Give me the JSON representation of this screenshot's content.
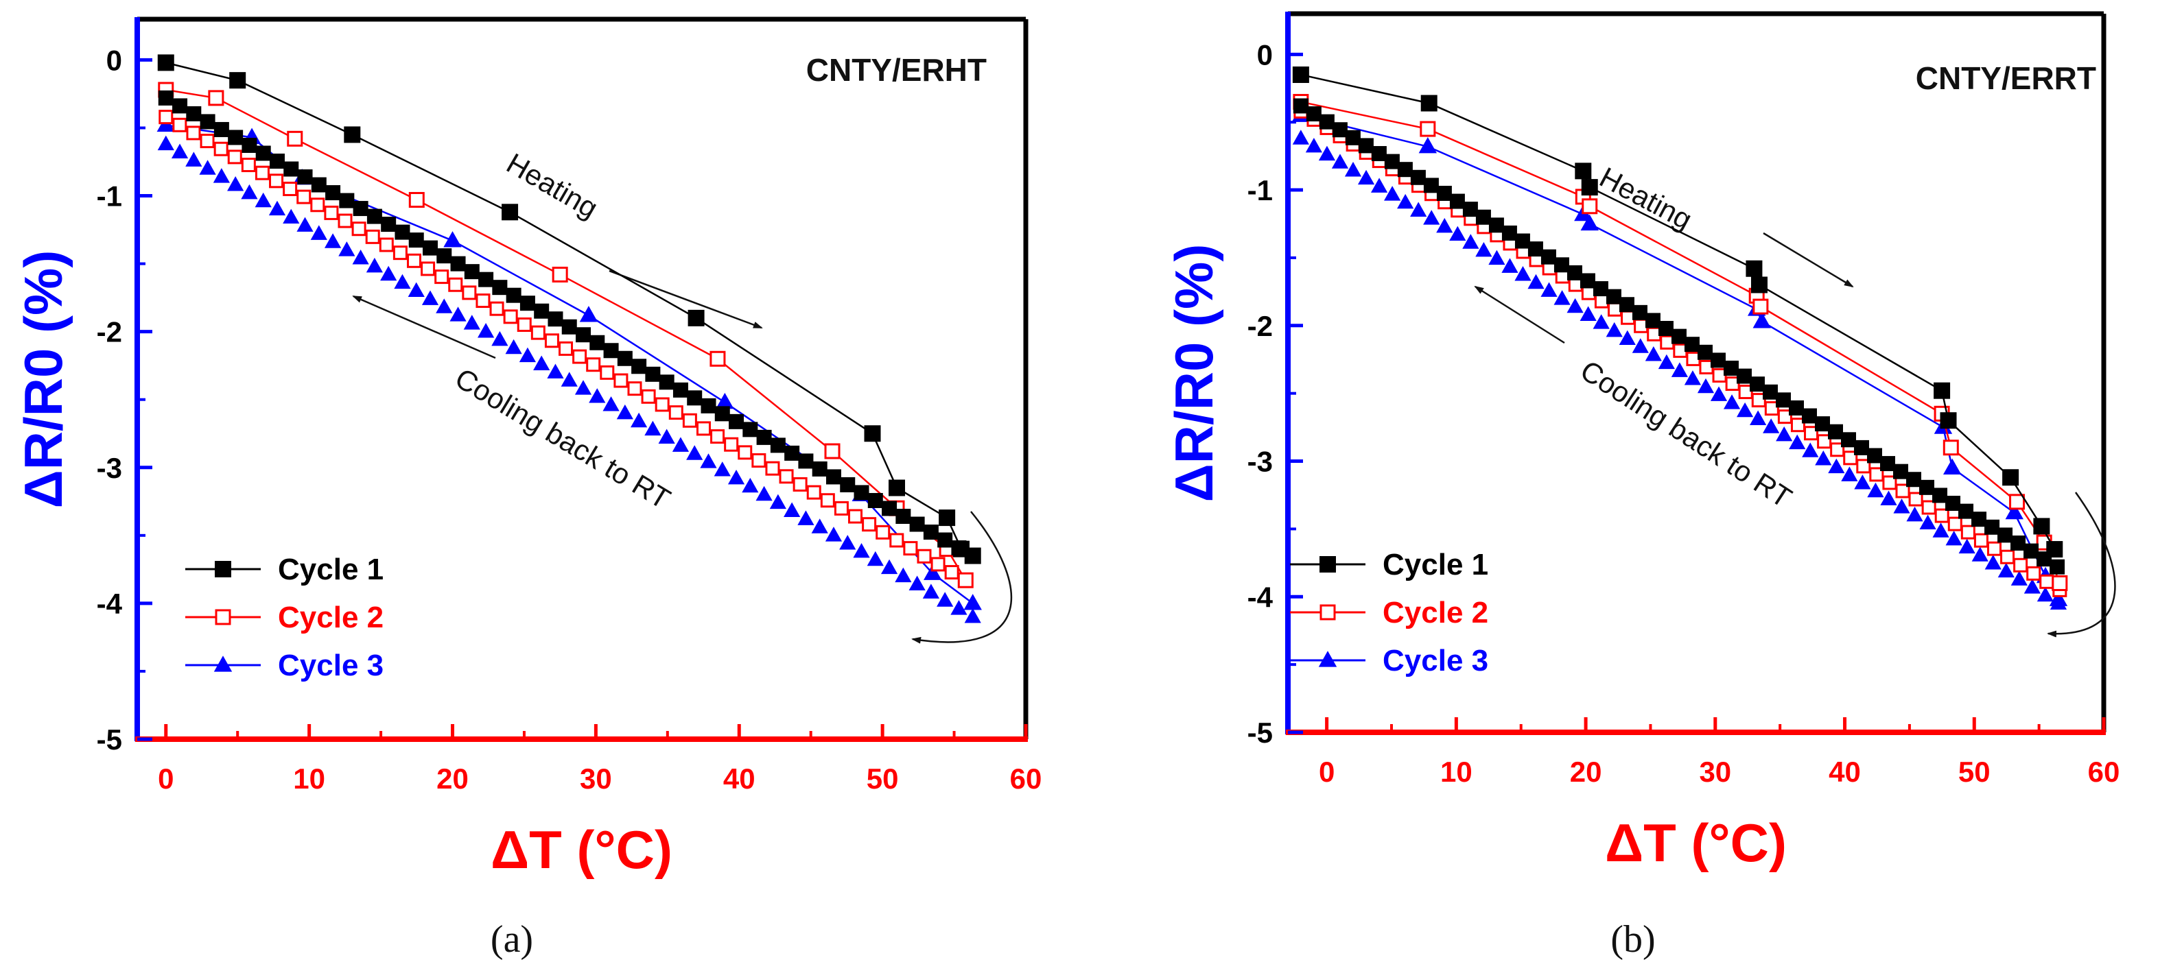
{
  "chart_data": [
    {
      "type": "line",
      "title": "CNTY/ERHT",
      "caption": "(a)",
      "xlabel": "ΔT (°C)",
      "ylabel": "ΔR/R0 (%)",
      "xlim": [
        -2,
        60
      ],
      "ylim": [
        -5,
        0.3
      ],
      "xticks": [
        0,
        10,
        20,
        30,
        40,
        50,
        60
      ],
      "yticks": [
        0,
        -1,
        -2,
        -3,
        -4,
        -5
      ],
      "x_axis_color": "#ff0000",
      "y_axis_color": "#0000ff",
      "legend_position": "bottom-left",
      "annotations": [
        "Heating",
        "Cooling back to RT"
      ],
      "series": [
        {
          "name": "Cycle 1",
          "color": "#000000",
          "marker": "square-filled",
          "heating": [
            [
              0,
              -0.02
            ],
            [
              5,
              -0.15
            ],
            [
              13,
              -0.55
            ],
            [
              24,
              -1.12
            ],
            [
              37,
              -1.9
            ],
            [
              49.3,
              -2.75
            ],
            [
              51,
              -3.15
            ],
            [
              54.5,
              -3.37
            ],
            [
              55.5,
              -3.6
            ],
            [
              56.3,
              -3.65
            ]
          ],
          "cooling": [
            [
              56.3,
              -3.65
            ],
            [
              0,
              -0.28
            ]
          ]
        },
        {
          "name": "Cycle 2",
          "color": "#ff0000",
          "marker": "square-open",
          "heating": [
            [
              0,
              -0.22
            ],
            [
              3.5,
              -0.28
            ],
            [
              9,
              -0.58
            ],
            [
              17.5,
              -1.03
            ],
            [
              27.5,
              -1.58
            ],
            [
              38.5,
              -2.2
            ],
            [
              46.5,
              -2.88
            ],
            [
              51,
              -3.3
            ],
            [
              54.5,
              -3.6
            ],
            [
              55.8,
              -3.83
            ]
          ],
          "cooling": [
            [
              55.8,
              -3.83
            ],
            [
              0,
              -0.42
            ]
          ]
        },
        {
          "name": "Cycle 3",
          "color": "#0000ff",
          "marker": "triangle-filled",
          "heating": [
            [
              0,
              -0.48
            ],
            [
              6,
              -0.57
            ],
            [
              9.5,
              -0.87
            ],
            [
              20,
              -1.33
            ],
            [
              29.5,
              -1.88
            ],
            [
              39,
              -2.52
            ],
            [
              48.5,
              -3.2
            ],
            [
              53.5,
              -3.78
            ],
            [
              56.3,
              -4.0
            ]
          ],
          "cooling": [
            [
              56.3,
              -4.1
            ],
            [
              0,
              -0.62
            ]
          ]
        }
      ]
    },
    {
      "type": "line",
      "title": "CNTY/ERRT",
      "caption": "(b)",
      "xlabel": "ΔT (°C)",
      "ylabel": "ΔR/R0 (%)",
      "xlim": [
        -3,
        60
      ],
      "ylim": [
        -5,
        0.3
      ],
      "xticks": [
        0,
        10,
        20,
        30,
        40,
        50,
        60
      ],
      "yticks": [
        0,
        -1,
        -2,
        -3,
        -4,
        -5
      ],
      "x_axis_color": "#ff0000",
      "y_axis_color": "#0000ff",
      "legend_position": "bottom-left",
      "annotations": [
        "Heating",
        "Cooling back to RT"
      ],
      "series": [
        {
          "name": "Cycle 1",
          "color": "#000000",
          "marker": "square-filled",
          "heating": [
            [
              -2,
              -0.15
            ],
            [
              7.9,
              -0.36
            ],
            [
              19.8,
              -0.86
            ],
            [
              20.3,
              -0.98
            ],
            [
              33,
              -1.58
            ],
            [
              33.4,
              -1.7
            ],
            [
              47.5,
              -2.48
            ],
            [
              48,
              -2.7
            ],
            [
              52.8,
              -3.12
            ],
            [
              55.2,
              -3.48
            ],
            [
              56.2,
              -3.65
            ]
          ],
          "cooling": [
            [
              56.4,
              -3.78
            ],
            [
              -2,
              -0.38
            ]
          ]
        },
        {
          "name": "Cycle 2",
          "color": "#ff0000",
          "marker": "square-open",
          "heating": [
            [
              -2,
              -0.35
            ],
            [
              7.8,
              -0.55
            ],
            [
              19.8,
              -1.05
            ],
            [
              20.3,
              -1.12
            ],
            [
              33.2,
              -1.78
            ],
            [
              33.5,
              -1.86
            ],
            [
              47.5,
              -2.65
            ],
            [
              48.2,
              -2.9
            ],
            [
              53.3,
              -3.3
            ],
            [
              55.4,
              -3.6
            ],
            [
              56.6,
              -3.9
            ]
          ],
          "cooling": [
            [
              56.6,
              -3.95
            ],
            [
              -2,
              -0.42
            ]
          ]
        },
        {
          "name": "Cycle 3",
          "color": "#0000ff",
          "marker": "triangle-filled",
          "heating": [
            [
              -2,
              -0.45
            ],
            [
              7.8,
              -0.68
            ],
            [
              19.8,
              -1.18
            ],
            [
              20.3,
              -1.25
            ],
            [
              33.2,
              -1.88
            ],
            [
              33.6,
              -1.97
            ],
            [
              47.6,
              -2.75
            ],
            [
              48.3,
              -3.05
            ],
            [
              53.1,
              -3.38
            ],
            [
              55.5,
              -3.85
            ],
            [
              56.5,
              -4.02
            ]
          ],
          "cooling": [
            [
              56.5,
              -4.05
            ],
            [
              -2,
              -0.62
            ]
          ]
        }
      ]
    }
  ]
}
